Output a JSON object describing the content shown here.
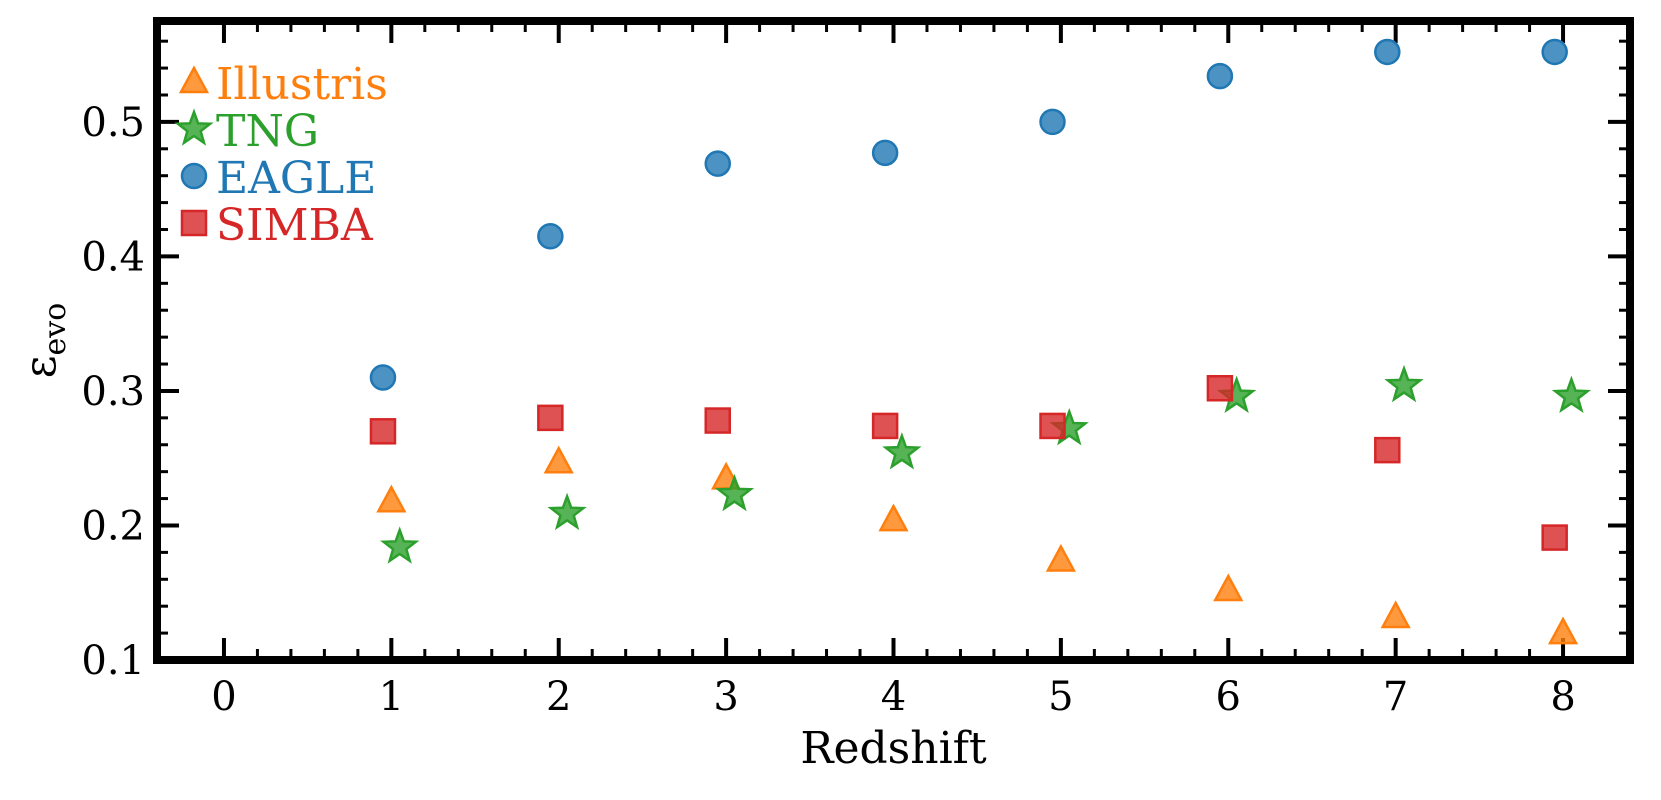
{
  "chart_data": {
    "type": "scatter",
    "title": "",
    "xlabel": "Redshift",
    "ylabel": "ε",
    "ylabel_sub": "evo",
    "xlim": [
      -0.4,
      8.4
    ],
    "ylim": [
      0.1,
      0.575
    ],
    "xticks": [
      0,
      1,
      2,
      3,
      4,
      5,
      6,
      7,
      8
    ],
    "xtick_labels": [
      "0",
      "1",
      "2",
      "3",
      "4",
      "5",
      "6",
      "7",
      "8"
    ],
    "yticks": [
      0.1,
      0.2,
      0.3,
      0.4,
      0.5
    ],
    "ytick_labels": [
      "0.1",
      "0.2",
      "0.3",
      "0.4",
      "0.5"
    ],
    "grid": false,
    "legend_position": "top-left",
    "series": [
      {
        "name": "Illustris",
        "marker": "triangle",
        "color": "#ff7f0e",
        "points": [
          {
            "x": 1.0,
            "y": 0.218
          },
          {
            "x": 2.0,
            "y": 0.247
          },
          {
            "x": 3.0,
            "y": 0.235
          },
          {
            "x": 4.0,
            "y": 0.204
          },
          {
            "x": 5.0,
            "y": 0.174
          },
          {
            "x": 6.0,
            "y": 0.152
          },
          {
            "x": 7.0,
            "y": 0.132
          },
          {
            "x": 8.0,
            "y": 0.12
          }
        ]
      },
      {
        "name": "TNG",
        "marker": "star",
        "color": "#2ca02c",
        "points": [
          {
            "x": 1.05,
            "y": 0.184
          },
          {
            "x": 2.05,
            "y": 0.209
          },
          {
            "x": 3.05,
            "y": 0.223
          },
          {
            "x": 4.05,
            "y": 0.254
          },
          {
            "x": 5.05,
            "y": 0.272
          },
          {
            "x": 6.05,
            "y": 0.296
          },
          {
            "x": 7.05,
            "y": 0.304
          },
          {
            "x": 8.05,
            "y": 0.296
          }
        ]
      },
      {
        "name": "EAGLE",
        "marker": "circle",
        "color": "#1f77b4",
        "points": [
          {
            "x": 0.95,
            "y": 0.31
          },
          {
            "x": 1.95,
            "y": 0.415
          },
          {
            "x": 2.95,
            "y": 0.469
          },
          {
            "x": 3.95,
            "y": 0.477
          },
          {
            "x": 4.95,
            "y": 0.5
          },
          {
            "x": 5.95,
            "y": 0.534
          },
          {
            "x": 6.95,
            "y": 0.552
          },
          {
            "x": 7.95,
            "y": 0.552
          }
        ]
      },
      {
        "name": "SIMBA",
        "marker": "square",
        "color": "#d62728",
        "points": [
          {
            "x": 0.95,
            "y": 0.27
          },
          {
            "x": 1.95,
            "y": 0.28
          },
          {
            "x": 2.95,
            "y": 0.278
          },
          {
            "x": 3.95,
            "y": 0.274
          },
          {
            "x": 4.95,
            "y": 0.274
          },
          {
            "x": 5.95,
            "y": 0.302
          },
          {
            "x": 6.95,
            "y": 0.256
          },
          {
            "x": 7.95,
            "y": 0.191
          }
        ]
      }
    ]
  }
}
